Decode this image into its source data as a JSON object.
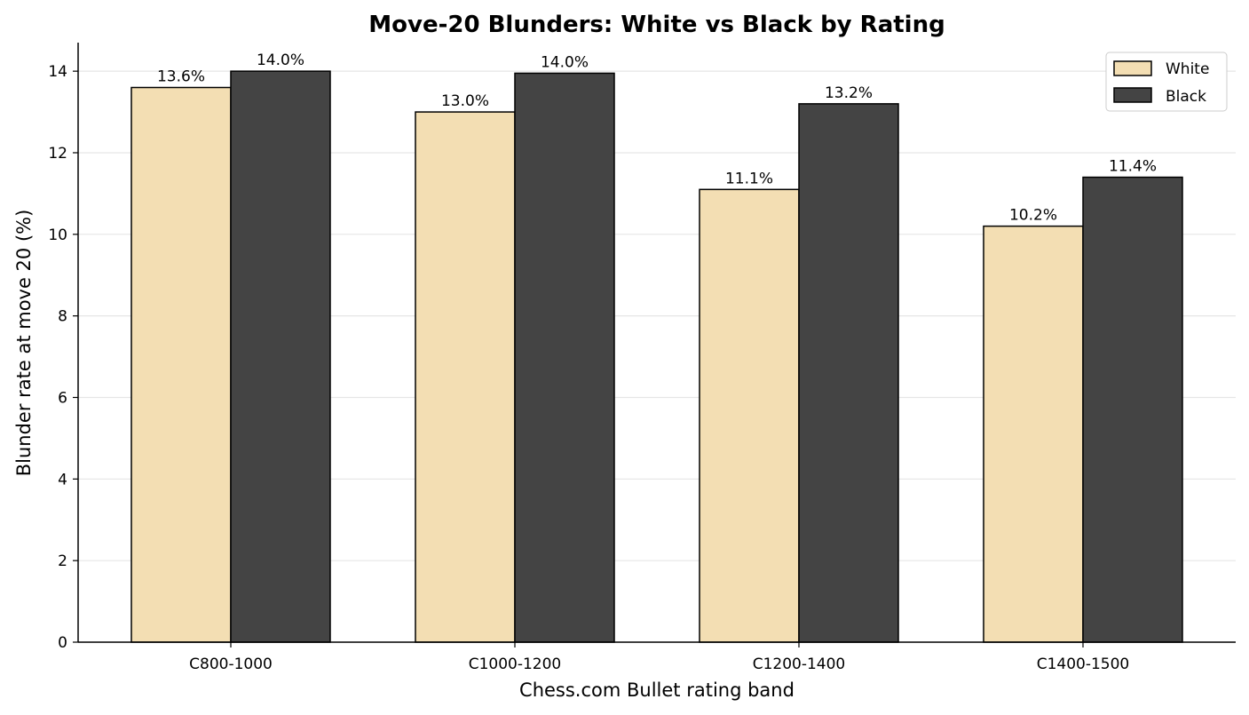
{
  "chart_data": {
    "type": "bar",
    "title": "Move-20 Blunders: White vs Black by Rating",
    "xlabel": "Chess.com Bullet rating band",
    "ylabel": "Blunder rate at move 20 (%)",
    "categories": [
      "C800-1000",
      "C1000-1200",
      "C1200-1400",
      "C1400-1500"
    ],
    "series": [
      {
        "name": "White",
        "values": [
          13.6,
          13.0,
          11.1,
          10.2
        ],
        "labels": [
          "13.6%",
          "13.0%",
          "11.1%",
          "10.2%"
        ],
        "color": "#f3deb3"
      },
      {
        "name": "Black",
        "values": [
          14.0,
          13.95,
          13.2,
          11.4
        ],
        "labels": [
          "14.0%",
          "14.0%",
          "13.2%",
          "11.4%"
        ],
        "color": "#444444"
      }
    ],
    "ylim": [
      0,
      14.7
    ],
    "yticks": [
      0,
      2,
      4,
      6,
      8,
      10,
      12,
      14
    ],
    "grid": true,
    "legend": "top-right"
  }
}
